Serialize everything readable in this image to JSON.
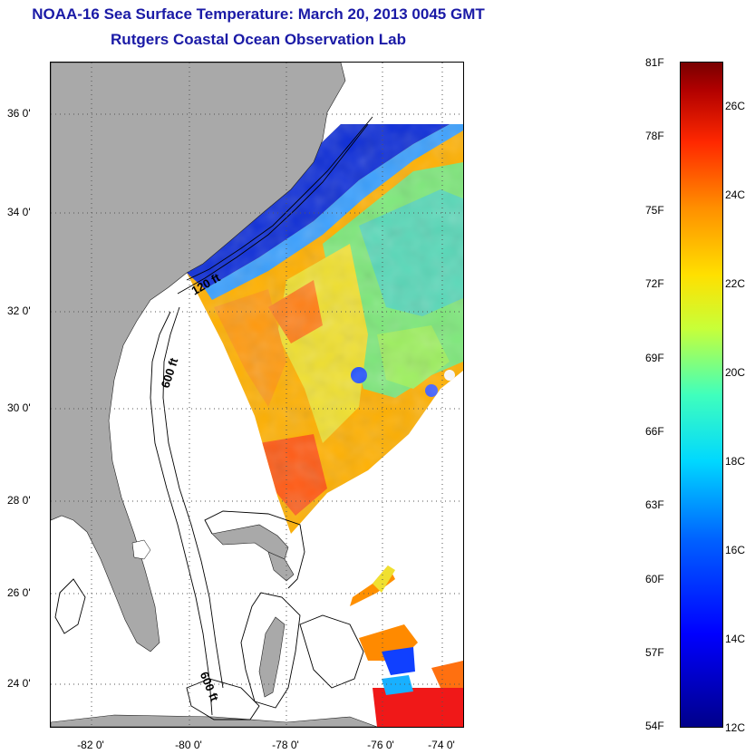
{
  "header": {
    "title": "NOAA-16 Sea Surface Temperature:  March 20, 2013 0045 GMT",
    "subtitle": "Rutgers Coastal Ocean Observation Lab"
  },
  "map": {
    "lat_ticks": [
      "36 0'",
      "34 0'",
      "32 0'",
      "30 0'",
      "28 0'",
      "26 0'",
      "24 0'"
    ],
    "lon_ticks": [
      "-82 0'",
      "-80 0'",
      "-78 0'",
      "-76 0'",
      "-74 0'"
    ],
    "depth_labels": {
      "shelf_120": "120 ft",
      "slope_600_north": "600 ft",
      "slope_600_south": "600 ft"
    },
    "colors": {
      "land": "#a9a9a9",
      "no_data": "#ffffff",
      "gridline": "#555555"
    }
  },
  "colorbar": {
    "fahrenheit": [
      "81F",
      "78F",
      "75F",
      "72F",
      "69F",
      "66F",
      "63F",
      "60F",
      "57F",
      "54F"
    ],
    "celsius": [
      "26C",
      "24C",
      "22C",
      "20C",
      "18C",
      "16C",
      "14C",
      "12C"
    ]
  }
}
